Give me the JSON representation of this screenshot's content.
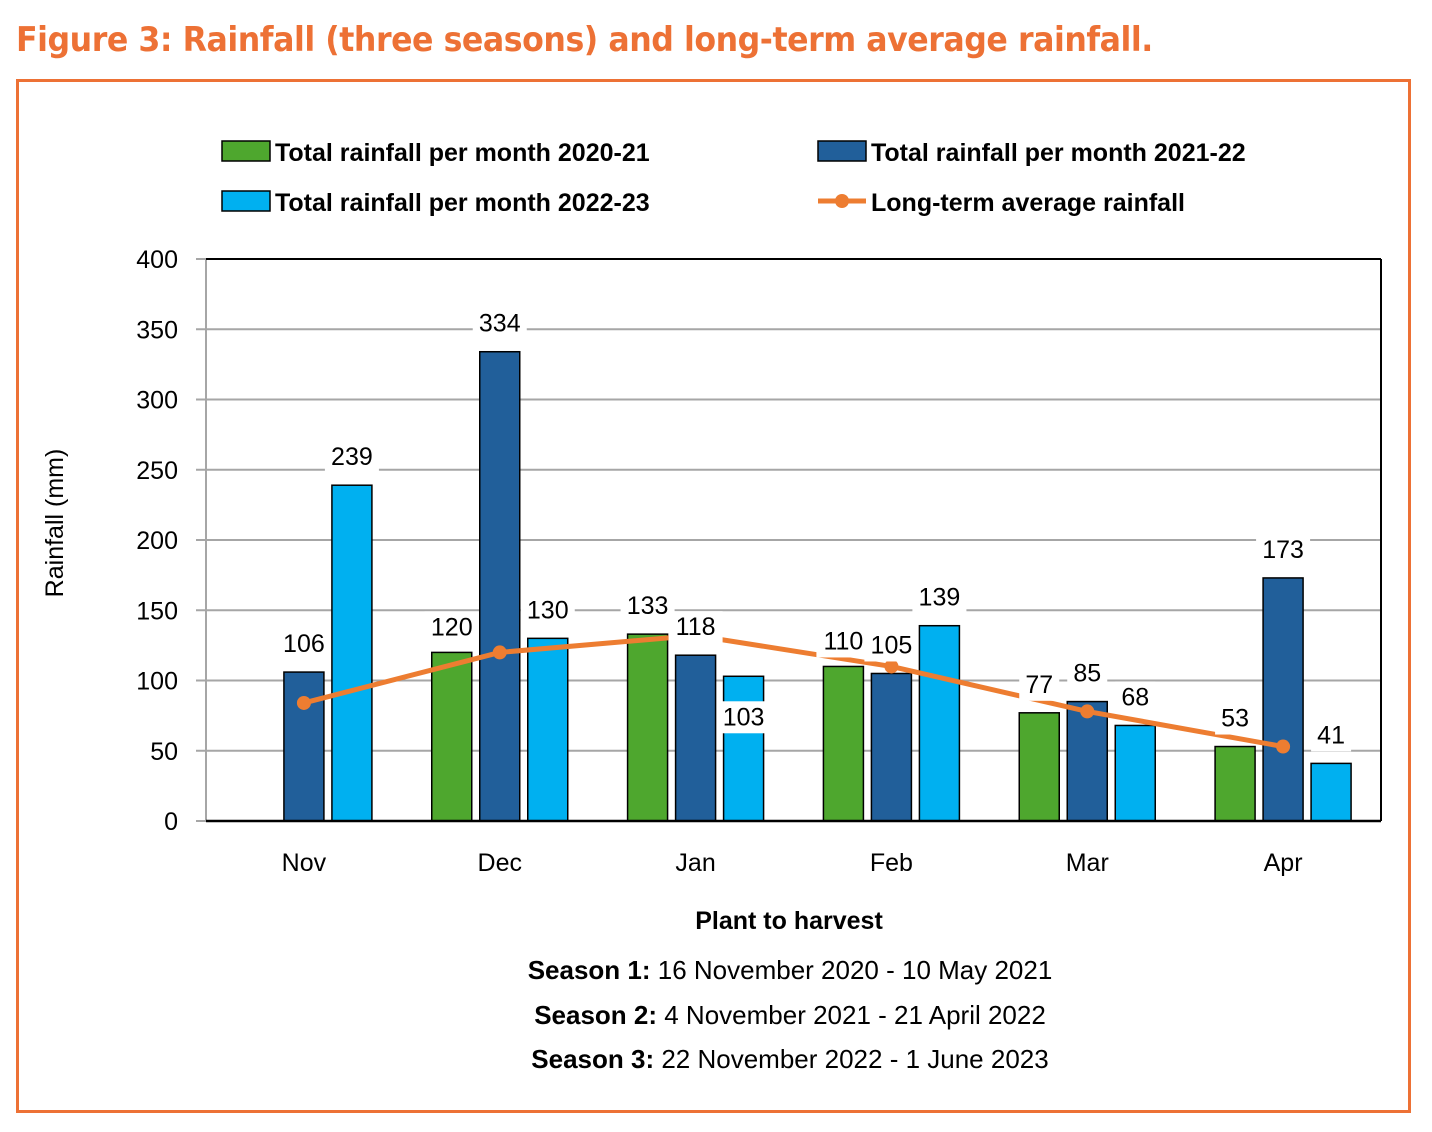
{
  "figure": {
    "title": "Figure 3: Rainfall (three seasons) and long-term average rainfall.",
    "accent_color": "#ED7135"
  },
  "chart_data": {
    "type": "bar",
    "title": "Figure 3: Rainfall (three seasons) and long-term average rainfall.",
    "xlabel": "Plant to harvest",
    "ylabel": "Rainfall (mm)",
    "ylim": [
      0,
      400
    ],
    "yticks": [
      0,
      50,
      100,
      150,
      200,
      250,
      300,
      350,
      400
    ],
    "grid": true,
    "legend_position": "top",
    "categories": [
      "Nov",
      "Dec",
      "Jan",
      "Feb",
      "Mar",
      "Apr"
    ],
    "series": [
      {
        "name": "Total rainfall per month 2020-21",
        "type": "bar",
        "color": "#4EA72E",
        "values": [
          null,
          120,
          133,
          110,
          77,
          53
        ]
      },
      {
        "name": "Total rainfall per month 2021-22",
        "type": "bar",
        "color": "#215F9A",
        "values": [
          106,
          334,
          118,
          105,
          85,
          173
        ]
      },
      {
        "name": "Total rainfall per month 2022-23",
        "type": "bar",
        "color": "#00B0F0",
        "values": [
          239,
          130,
          103,
          139,
          68,
          41
        ]
      },
      {
        "name": "Long-term average rainfall",
        "type": "line",
        "color": "#ED7D31",
        "values": [
          84,
          120,
          132,
          110,
          78,
          53
        ]
      }
    ]
  },
  "legend": {
    "items": [
      {
        "label": "Total rainfall per month 2020-21",
        "color": "#4EA72E",
        "kind": "bar"
      },
      {
        "label": "Total rainfall per month 2021-22",
        "color": "#215F9A",
        "kind": "bar"
      },
      {
        "label": "Total rainfall per month 2022-23",
        "color": "#00B0F0",
        "kind": "bar"
      },
      {
        "label": "Long-term average rainfall",
        "color": "#ED7D31",
        "kind": "line"
      }
    ]
  },
  "seasons": [
    {
      "label": "Season 1:",
      "range": " 16 November 2020 - 10 May 2021"
    },
    {
      "label": "Season 2:",
      "range": " 4 November 2021 - 21 April 2022"
    },
    {
      "label": "Season 3:",
      "range": " 22 November 2022 - 1 June 2023"
    }
  ]
}
